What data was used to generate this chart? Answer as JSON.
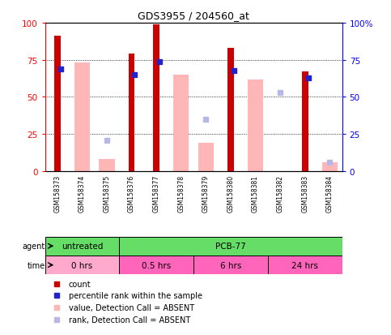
{
  "title": "GDS3955 / 204560_at",
  "samples": [
    "GSM158373",
    "GSM158374",
    "GSM158375",
    "GSM158376",
    "GSM158377",
    "GSM158378",
    "GSM158379",
    "GSM158380",
    "GSM158381",
    "GSM158382",
    "GSM158383",
    "GSM158384"
  ],
  "count_values": [
    91,
    0,
    0,
    79,
    99,
    0,
    0,
    83,
    0,
    0,
    67,
    0
  ],
  "rank_values": [
    69,
    0,
    0,
    65,
    74,
    0,
    0,
    68,
    0,
    0,
    63,
    0
  ],
  "absent_value_values": [
    0,
    73,
    8,
    0,
    0,
    65,
    19,
    0,
    62,
    0,
    0,
    6
  ],
  "absent_rank_values": [
    0,
    0,
    21,
    0,
    0,
    0,
    35,
    0,
    0,
    53,
    0,
    6
  ],
  "count_color": "#CC0000",
  "rank_color": "#2222CC",
  "absent_value_color": "#FFB6B6",
  "absent_rank_color": "#B8B8E8",
  "bg_color": "#FFFFFF",
  "plot_bg": "#FFFFFF",
  "ylim": [
    0,
    100
  ],
  "bar_width": 0.45,
  "agent_label_bg": "#66DD66",
  "time_0_color": "#FFAACC",
  "time_other_color": "#FF66BB",
  "label_box_color": "#C8C8C8",
  "agent_groups": [
    {
      "label": "untreated",
      "start": 0,
      "end": 3
    },
    {
      "label": "PCB-77",
      "start": 3,
      "end": 12
    }
  ],
  "time_groups": [
    {
      "label": "0 hrs",
      "start": 0,
      "end": 3
    },
    {
      "label": "0.5 hrs",
      "start": 3,
      "end": 6
    },
    {
      "label": "6 hrs",
      "start": 6,
      "end": 9
    },
    {
      "label": "24 hrs",
      "start": 9,
      "end": 12
    }
  ],
  "legend_items": [
    {
      "color": "#CC0000",
      "label": "count"
    },
    {
      "color": "#2222CC",
      "label": "percentile rank within the sample"
    },
    {
      "color": "#FFB6B6",
      "label": "value, Detection Call = ABSENT"
    },
    {
      "color": "#B8B8E8",
      "label": "rank, Detection Call = ABSENT"
    }
  ]
}
